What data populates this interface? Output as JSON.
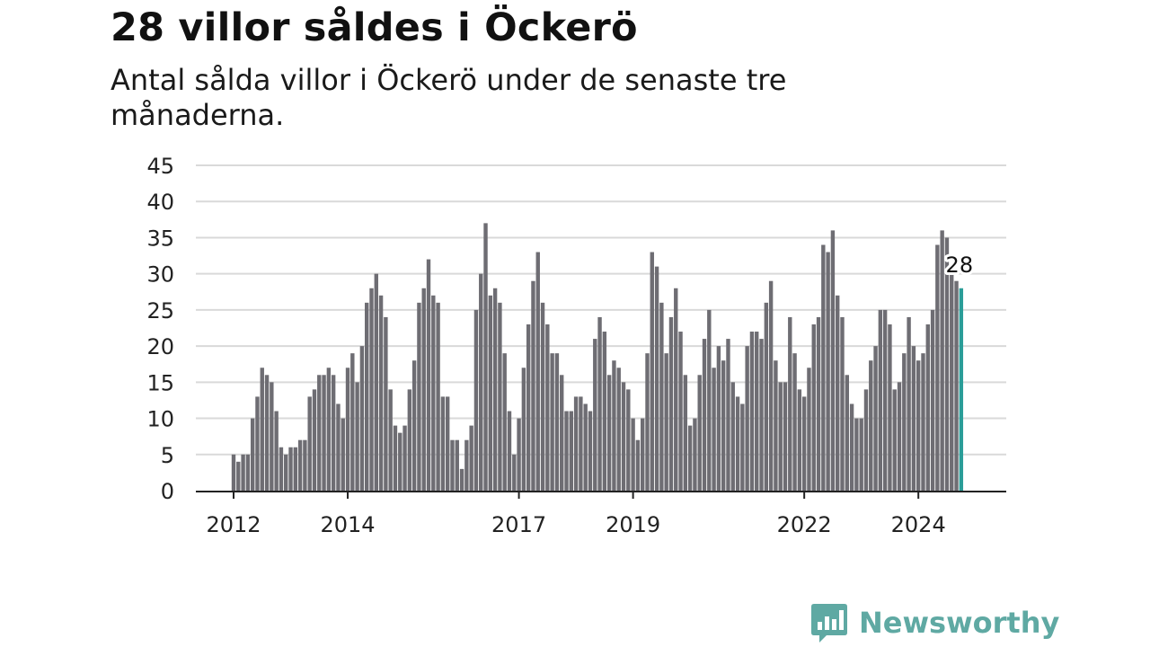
{
  "header": {
    "title": "28 villor såldes i Öckerö",
    "subtitle": "Antal sålda villor i Öckerö under de senaste tre månaderna."
  },
  "brand": {
    "name": "Newsworthy",
    "color": "#5fa9a3",
    "icon": "bar-chart-speech-bubble-icon"
  },
  "chart_data": {
    "type": "bar",
    "ylim": [
      0,
      45
    ],
    "yticks": [
      0,
      5,
      10,
      15,
      20,
      25,
      30,
      35,
      40,
      45
    ],
    "grid": true,
    "bar_color": "#6e6d73",
    "highlight_color": "#2a9d98",
    "x_start": "2012-01",
    "x_ticks": [
      {
        "label": "2012",
        "index": 0
      },
      {
        "label": "2014",
        "index": 24
      },
      {
        "label": "2017",
        "index": 60
      },
      {
        "label": "2019",
        "index": 84
      },
      {
        "label": "2022",
        "index": 120
      },
      {
        "label": "2024",
        "index": 144
      }
    ],
    "values": [
      5,
      4,
      5,
      5,
      10,
      13,
      17,
      16,
      15,
      11,
      6,
      5,
      6,
      6,
      7,
      7,
      13,
      14,
      16,
      16,
      17,
      16,
      12,
      10,
      17,
      19,
      15,
      20,
      26,
      28,
      30,
      27,
      24,
      14,
      9,
      8,
      9,
      14,
      18,
      26,
      28,
      32,
      27,
      26,
      13,
      13,
      7,
      7,
      3,
      7,
      9,
      25,
      30,
      37,
      27,
      28,
      26,
      19,
      11,
      5,
      10,
      17,
      23,
      29,
      33,
      26,
      23,
      19,
      19,
      16,
      11,
      11,
      13,
      13,
      12,
      11,
      21,
      24,
      22,
      16,
      18,
      17,
      15,
      14,
      10,
      7,
      10,
      19,
      33,
      31,
      26,
      19,
      24,
      28,
      22,
      16,
      9,
      10,
      16,
      21,
      25,
      17,
      20,
      18,
      21,
      15,
      13,
      12,
      20,
      22,
      22,
      21,
      26,
      29,
      18,
      15,
      15,
      24,
      19,
      14,
      13,
      17,
      23,
      24,
      34,
      33,
      36,
      27,
      24,
      16,
      12,
      10,
      10,
      14,
      18,
      20,
      25,
      25,
      23,
      14,
      15,
      19,
      24,
      20,
      18,
      19,
      23,
      25,
      34,
      36,
      35,
      30,
      29,
      28
    ],
    "last_value_label": "28"
  }
}
